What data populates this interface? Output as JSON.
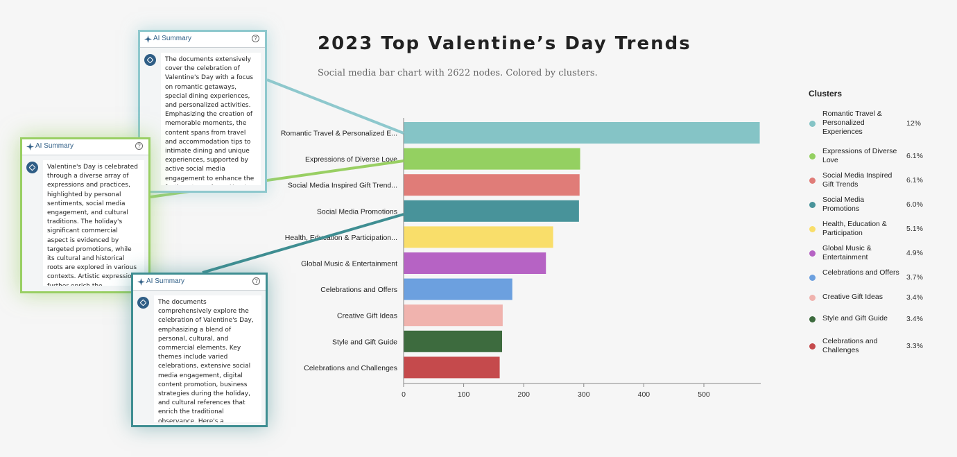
{
  "title": "2023 Top Valentine’s Day Trends",
  "subtitle": "Social media bar chart with 2622 nodes. Colored by clusters.",
  "chart_data": {
    "type": "bar",
    "orientation": "horizontal",
    "categories": [
      "Romantic Travel & Personalized E...",
      "Expressions of Diverse Love",
      "Social Media Inspired Gift Trend...",
      "Social Media Promotions",
      "Health, Education & Participation...",
      "Global Music & Entertainment",
      "Celebrations and Offers",
      "Creative Gift Ideas",
      "Style and Gift Guide",
      "Celebrations and Challenges"
    ],
    "values": [
      593,
      294,
      293,
      292,
      249,
      237,
      181,
      165,
      164,
      160
    ],
    "colors": [
      "#85c4c6",
      "#94d061",
      "#e07c78",
      "#48939a",
      "#f9de6a",
      "#b663c4",
      "#6ca0df",
      "#f0b3ae",
      "#3d6b3e",
      "#c54a4c"
    ],
    "xlim": [
      0,
      600
    ],
    "xticks": [
      0,
      100,
      200,
      300,
      400,
      500
    ],
    "grid": false
  },
  "legend": {
    "title": "Clusters",
    "items": [
      {
        "label": "Romantic Travel & Personalized Experiences",
        "value": "12%",
        "color": "#85c4c6"
      },
      {
        "label": "Expressions of Diverse Love",
        "value": "6.1%",
        "color": "#94d061"
      },
      {
        "label": "Social Media Inspired Gift Trends",
        "value": "6.1%",
        "color": "#e07c78"
      },
      {
        "label": "Social Media Promotions",
        "value": "6.0%",
        "color": "#48939a"
      },
      {
        "label": "Health, Education & Participation",
        "value": "5.1%",
        "color": "#f9de6a"
      },
      {
        "label": "Global Music & Entertainment",
        "value": "4.9%",
        "color": "#b663c4"
      },
      {
        "label": "Celebrations and Offers",
        "value": "3.7%",
        "color": "#6ca0df"
      },
      {
        "label": "Creative Gift Ideas",
        "value": "3.4%",
        "color": "#f0b3ae"
      },
      {
        "label": "Style and Gift Guide",
        "value": "3.4%",
        "color": "#3d6b3e"
      },
      {
        "label": "Celebrations and Challenges",
        "value": "3.3%",
        "color": "#c54a4c"
      }
    ]
  },
  "cards": [
    {
      "header": "AI Summary",
      "help": "?",
      "text": "The documents extensively cover the celebration of Valentine's Day with a focus on romantic getaways, special dining experiences, and personalized activities. Emphasizing the creation of memorable moments, the content spans from travel and accommodation tips to intimate dining and unique experiences, supported by active social media engagement to enhance the festive atmosphere. Here's a breakdown:"
    },
    {
      "header": "AI Summary",
      "help": "?",
      "text": "Valentine's Day is celebrated through a diverse array of expressions and practices, highlighted by personal sentiments, social media engagement, and cultural traditions. The holiday's significant commercial aspect is evidenced by targeted promotions, while its cultural and historical roots are explored in various contexts. Artistic expressions further enrich the celebration, making it a multifaceted observance of love"
    },
    {
      "header": "AI Summary",
      "help": "?",
      "text": "The documents comprehensively explore the celebration of Valentine's Day, emphasizing a blend of personal, cultural, and commercial elements. Key themes include varied celebrations, extensive social media engagement, digital content promotion, business strategies during the holiday, and cultural references that enrich the traditional observance. Here's a breakdown:"
    }
  ]
}
